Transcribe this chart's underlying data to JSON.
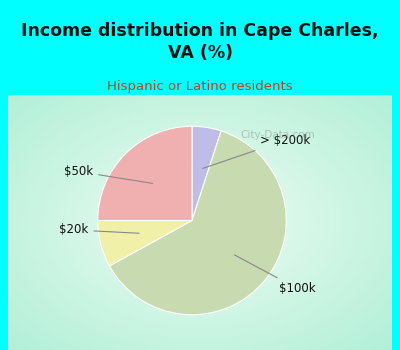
{
  "title": "Income distribution in Cape Charles,\nVA (%)",
  "subtitle": "Hispanic or Latino residents",
  "slices": [
    {
      "label": "> $200k",
      "value": 5,
      "color": "#c0bce8"
    },
    {
      "label": "$100k",
      "value": 62,
      "color": "#c8dab0"
    },
    {
      "label": "$20k",
      "value": 8,
      "color": "#f0f0a8"
    },
    {
      "label": "$50k",
      "value": 25,
      "color": "#f0b0b0"
    }
  ],
  "startangle": 90,
  "counterclock": false,
  "bg_cyan": "#00ffff",
  "bg_chart_edge": "#b0e8d0",
  "bg_chart_center": "#f0faf5",
  "title_color": "#111111",
  "subtitle_color": "#c04020",
  "watermark": "City-Data.com",
  "label_color": "#111111",
  "label_fontsize": 8.5,
  "title_fontsize": 12.5,
  "subtitle_fontsize": 9.5,
  "wedge_edge_color": "white",
  "wedge_edge_lw": 0.8,
  "annotation_line_color": "#888888",
  "annotation_line_lw": 0.8
}
